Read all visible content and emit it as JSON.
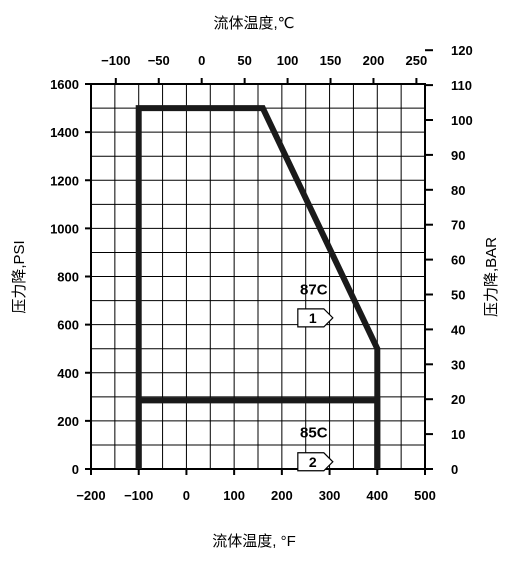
{
  "chart_data": {
    "type": "line",
    "title": "",
    "axes": {
      "x_bottom": {
        "label": "流体温度, °F",
        "range": [
          -200,
          500
        ],
        "ticks": [
          -200,
          -100,
          0,
          100,
          200,
          300,
          400,
          500
        ],
        "tick_labels": [
          "−200",
          "−100",
          "0",
          "100",
          "200",
          "300",
          "400",
          "500"
        ]
      },
      "x_top": {
        "label": "流体温度,℃",
        "ticks": [
          -100,
          -50,
          0,
          50,
          100,
          150,
          200,
          250
        ],
        "tick_labels": [
          "−100",
          "−50",
          "0",
          "50",
          "100",
          "150",
          "200",
          "250"
        ]
      },
      "y_left": {
        "label": "压力降,PSI",
        "range": [
          0,
          1600
        ],
        "ticks": [
          0,
          200,
          400,
          600,
          800,
          1000,
          1200,
          1400,
          1600
        ],
        "tick_labels": [
          "0",
          "200",
          "400",
          "600",
          "800",
          "1000",
          "1200",
          "1400",
          "1600"
        ]
      },
      "y_right": {
        "label": "压力降,BAR",
        "ticks": [
          0,
          10,
          20,
          30,
          40,
          50,
          60,
          70,
          80,
          90,
          100,
          110,
          120
        ],
        "tick_labels": [
          "0",
          "10",
          "20",
          "30",
          "40",
          "50",
          "60",
          "70",
          "80",
          "90",
          "100",
          "110",
          "120"
        ]
      }
    },
    "grid": true,
    "series": [
      {
        "name": "87C",
        "marker": "1",
        "x": [
          -100,
          -100,
          160,
          400,
          400
        ],
        "y": [
          0,
          1500,
          1500,
          500,
          0
        ]
      },
      {
        "name": "85C",
        "marker": "2",
        "x": [
          -100,
          -100,
          400,
          400
        ],
        "y": [
          0,
          285,
          285,
          0
        ]
      }
    ]
  }
}
